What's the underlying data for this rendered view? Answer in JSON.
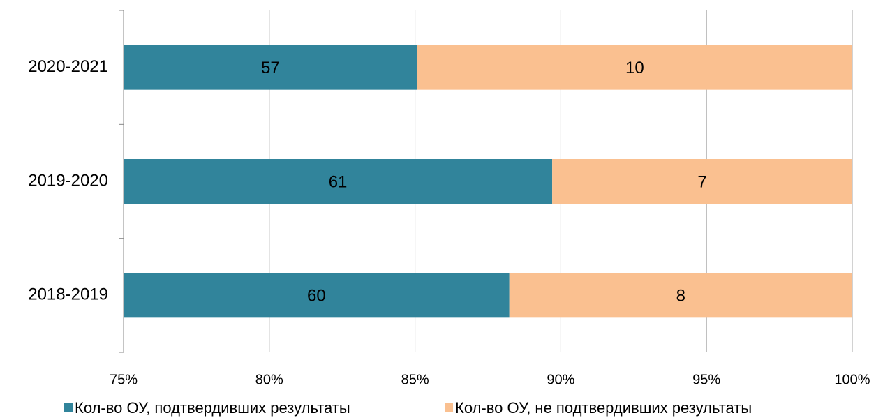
{
  "chart_data": {
    "type": "bar",
    "orientation": "horizontal",
    "stacking": "percent",
    "categories": [
      "2020-2021",
      "2019-2020",
      "2018-2019"
    ],
    "series": [
      {
        "name": "Кол-во ОУ, подтвердивших результаты",
        "color": "#31849b",
        "values": [
          57,
          61,
          60
        ]
      },
      {
        "name": "Кол-во ОУ, не подтвердивших результаты",
        "color": "#fac090",
        "values": [
          10,
          7,
          8
        ]
      }
    ],
    "xlim": [
      75,
      100
    ],
    "xticks": [
      {
        "value": 75,
        "label": "75%"
      },
      {
        "value": 80,
        "label": "80%"
      },
      {
        "value": 85,
        "label": "85%"
      },
      {
        "value": 90,
        "label": "90%"
      },
      {
        "value": 95,
        "label": "95%"
      },
      {
        "value": 100,
        "label": "100%"
      }
    ],
    "grid": true,
    "legend": "bottom"
  }
}
